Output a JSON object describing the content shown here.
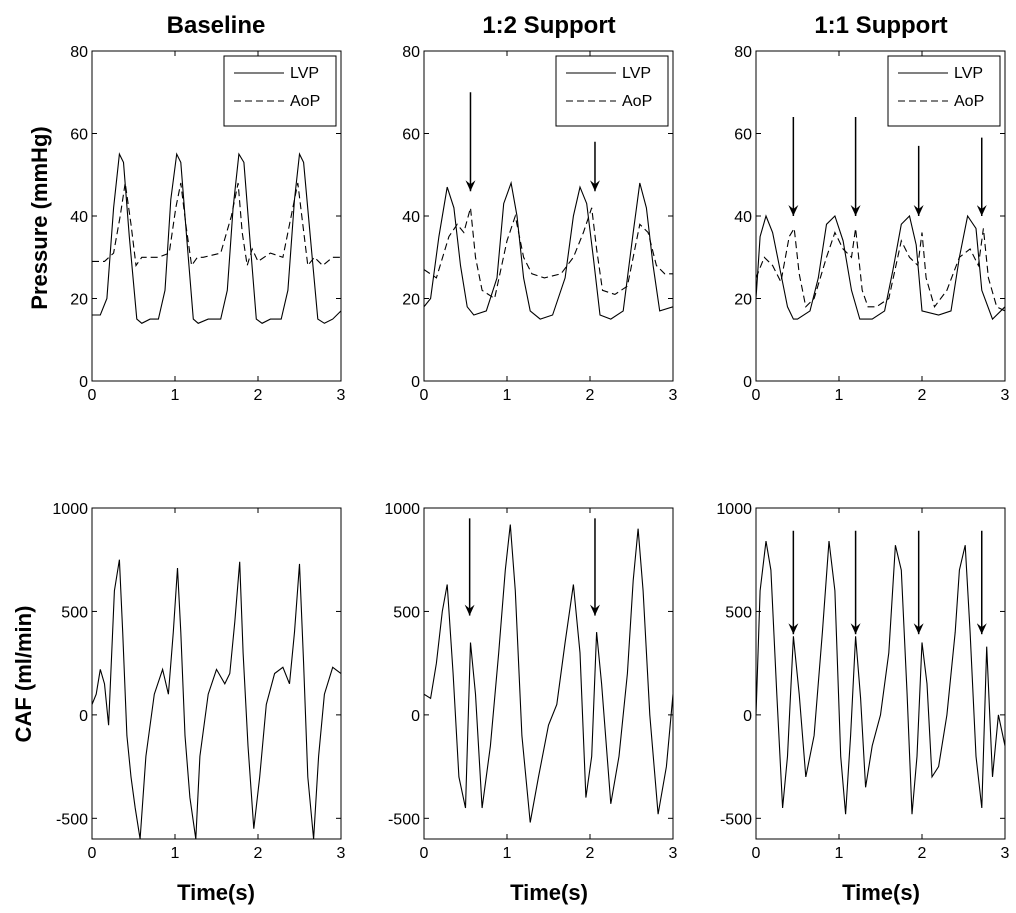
{
  "figure": {
    "column_titles": [
      "Baseline",
      "1:2 Support",
      "1:1 Support"
    ],
    "ylabel_top": "Pressure (mmHg)",
    "ylabel_bottom": "CAF (ml/min)",
    "xlabel": "Time(s)"
  },
  "chart_data": [
    {
      "type": "line",
      "panel": "pressure-baseline",
      "title": "Baseline",
      "ylabel": "Pressure (mmHg)",
      "xlabel": "",
      "xlim": [
        0,
        3
      ],
      "ylim": [
        0,
        80
      ],
      "xticks": [
        0,
        1,
        2,
        3
      ],
      "yticks": [
        0,
        20,
        40,
        60,
        80
      ],
      "legend": {
        "position": "top-right",
        "entries": [
          {
            "label": "LVP",
            "style": "solid"
          },
          {
            "label": "AoP",
            "style": "dashed"
          }
        ]
      },
      "series": [
        {
          "name": "LVP",
          "style": "solid",
          "x": [
            0,
            0.1,
            0.18,
            0.26,
            0.33,
            0.38,
            0.45,
            0.54,
            0.6,
            0.7,
            0.8,
            0.88,
            0.95,
            1.02,
            1.07,
            1.14,
            1.22,
            1.28,
            1.4,
            1.55,
            1.63,
            1.7,
            1.77,
            1.83,
            1.9,
            1.98,
            2.05,
            2.15,
            2.28,
            2.36,
            2.44,
            2.5,
            2.55,
            2.63,
            2.72,
            2.8,
            2.9,
            3.0
          ],
          "y": [
            16,
            16,
            20,
            42,
            55,
            53,
            35,
            15,
            14,
            15,
            15,
            22,
            44,
            55,
            53,
            35,
            15,
            14,
            15,
            15,
            22,
            42,
            55,
            53,
            35,
            15,
            14,
            15,
            15,
            22,
            44,
            55,
            53,
            35,
            15,
            14,
            15,
            17
          ]
        },
        {
          "name": "AoP",
          "style": "dashed",
          "x": [
            0,
            0.15,
            0.26,
            0.34,
            0.4,
            0.47,
            0.53,
            0.6,
            0.8,
            0.93,
            1.01,
            1.07,
            1.13,
            1.2,
            1.27,
            1.34,
            1.55,
            1.68,
            1.76,
            1.81,
            1.87,
            1.93,
            2.0,
            2.15,
            2.3,
            2.4,
            2.48,
            2.54,
            2.6,
            2.68,
            2.78,
            2.9,
            3.0
          ],
          "y": [
            29,
            29,
            31,
            40,
            48,
            38,
            28,
            30,
            30,
            31,
            42,
            48,
            38,
            28,
            30,
            30,
            31,
            40,
            48,
            36,
            28,
            32,
            29,
            31,
            30,
            40,
            48,
            38,
            28,
            30,
            28,
            30,
            30
          ]
        }
      ]
    },
    {
      "type": "line",
      "panel": "pressure-1to2",
      "title": "1:2 Support",
      "ylabel": "",
      "xlabel": "",
      "xlim": [
        0,
        3
      ],
      "ylim": [
        0,
        80
      ],
      "xticks": [
        0,
        1,
        2,
        3
      ],
      "yticks": [
        0,
        20,
        40,
        60,
        80
      ],
      "legend": {
        "position": "top-right",
        "entries": [
          {
            "label": "LVP",
            "style": "solid"
          },
          {
            "label": "AoP",
            "style": "dashed"
          }
        ]
      },
      "arrows": [
        {
          "x": 0.56,
          "y_from": 70,
          "y_to": 46
        },
        {
          "x": 2.06,
          "y_from": 58,
          "y_to": 46
        }
      ],
      "series": [
        {
          "name": "LVP",
          "style": "solid",
          "x": [
            0,
            0.08,
            0.18,
            0.28,
            0.36,
            0.44,
            0.52,
            0.6,
            0.75,
            0.88,
            0.96,
            1.05,
            1.12,
            1.2,
            1.28,
            1.4,
            1.55,
            1.7,
            1.8,
            1.88,
            1.96,
            2.04,
            2.12,
            2.25,
            2.4,
            2.52,
            2.6,
            2.68,
            2.76,
            2.84,
            3.0
          ],
          "y": [
            18,
            20,
            35,
            47,
            42,
            28,
            18,
            16,
            17,
            25,
            43,
            48,
            40,
            25,
            17,
            15,
            16,
            25,
            40,
            47,
            43,
            30,
            16,
            15,
            17,
            36,
            48,
            42,
            28,
            17,
            18
          ]
        },
        {
          "name": "AoP",
          "style": "dashed",
          "x": [
            0,
            0.15,
            0.3,
            0.4,
            0.48,
            0.56,
            0.62,
            0.7,
            0.85,
            1.0,
            1.1,
            1.2,
            1.3,
            1.45,
            1.65,
            1.8,
            1.92,
            2.02,
            2.08,
            2.15,
            2.3,
            2.45,
            2.6,
            2.7,
            2.8,
            2.9,
            3.0
          ],
          "y": [
            27,
            25,
            35,
            38,
            36,
            42,
            30,
            22,
            20,
            34,
            40,
            30,
            26,
            25,
            26,
            30,
            36,
            42,
            32,
            22,
            21,
            23,
            38,
            36,
            28,
            26,
            26
          ]
        }
      ]
    },
    {
      "type": "line",
      "panel": "pressure-1to1",
      "title": "1:1 Support",
      "ylabel": "",
      "xlabel": "",
      "xlim": [
        0,
        3
      ],
      "ylim": [
        0,
        80
      ],
      "xticks": [
        0,
        1,
        2,
        3
      ],
      "yticks": [
        0,
        20,
        40,
        60,
        80
      ],
      "legend": {
        "position": "top-right",
        "entries": [
          {
            "label": "LVP",
            "style": "solid"
          },
          {
            "label": "AoP",
            "style": "dashed"
          }
        ]
      },
      "arrows": [
        {
          "x": 0.45,
          "y_from": 64,
          "y_to": 40
        },
        {
          "x": 1.2,
          "y_from": 64,
          "y_to": 40
        },
        {
          "x": 1.96,
          "y_from": 57,
          "y_to": 40
        },
        {
          "x": 2.72,
          "y_from": 59,
          "y_to": 40
        }
      ],
      "series": [
        {
          "name": "LVP",
          "style": "solid",
          "x": [
            0,
            0.05,
            0.12,
            0.2,
            0.3,
            0.38,
            0.45,
            0.5,
            0.65,
            0.75,
            0.85,
            0.95,
            1.05,
            1.15,
            1.25,
            1.4,
            1.55,
            1.65,
            1.75,
            1.85,
            1.93,
            2.0,
            2.2,
            2.35,
            2.45,
            2.55,
            2.65,
            2.72,
            2.85,
            3.0
          ],
          "y": [
            20,
            35,
            40,
            36,
            26,
            18,
            15,
            15,
            17,
            25,
            38,
            40,
            34,
            22,
            15,
            15,
            17,
            27,
            38,
            40,
            33,
            17,
            16,
            17,
            30,
            40,
            37,
            22,
            15,
            18
          ]
        },
        {
          "name": "AoP",
          "style": "dashed",
          "x": [
            0,
            0.1,
            0.2,
            0.3,
            0.4,
            0.46,
            0.52,
            0.6,
            0.7,
            0.85,
            0.95,
            1.05,
            1.15,
            1.2,
            1.28,
            1.35,
            1.45,
            1.6,
            1.75,
            1.85,
            1.95,
            2.0,
            2.05,
            2.15,
            2.3,
            2.45,
            2.58,
            2.68,
            2.74,
            2.8,
            2.9,
            3.0
          ],
          "y": [
            25,
            30,
            28,
            24,
            35,
            37,
            26,
            18,
            20,
            30,
            36,
            32,
            30,
            37,
            22,
            18,
            18,
            20,
            34,
            30,
            28,
            36,
            25,
            18,
            22,
            30,
            32,
            28,
            37,
            25,
            18,
            17
          ]
        }
      ]
    },
    {
      "type": "line",
      "panel": "caf-baseline",
      "title": "",
      "ylabel": "CAF (ml/min)",
      "xlabel": "Time(s)",
      "xlim": [
        0,
        3
      ],
      "ylim": [
        -600,
        1000
      ],
      "xticks": [
        0,
        1,
        2,
        3
      ],
      "yticks": [
        -500,
        0,
        500,
        1000
      ],
      "series": [
        {
          "name": "",
          "style": "solid",
          "x": [
            0,
            0.05,
            0.1,
            0.15,
            0.2,
            0.27,
            0.33,
            0.37,
            0.42,
            0.47,
            0.52,
            0.58,
            0.65,
            0.75,
            0.85,
            0.92,
            0.98,
            1.03,
            1.07,
            1.12,
            1.18,
            1.25,
            1.3,
            1.4,
            1.5,
            1.6,
            1.66,
            1.72,
            1.78,
            1.82,
            1.88,
            1.95,
            2.02,
            2.1,
            2.2,
            2.3,
            2.38,
            2.44,
            2.5,
            2.55,
            2.6,
            2.67,
            2.73,
            2.8,
            2.9,
            3.0
          ],
          "y": [
            50,
            100,
            220,
            150,
            -50,
            600,
            750,
            400,
            -100,
            -300,
            -450,
            -600,
            -200,
            100,
            220,
            100,
            400,
            710,
            400,
            -100,
            -400,
            -600,
            -200,
            100,
            220,
            150,
            200,
            450,
            740,
            300,
            -150,
            -550,
            -300,
            50,
            200,
            230,
            150,
            400,
            730,
            250,
            -300,
            -600,
            -200,
            100,
            230,
            200
          ]
        }
      ]
    },
    {
      "type": "line",
      "panel": "caf-1to2",
      "title": "",
      "ylabel": "",
      "xlabel": "Time(s)",
      "xlim": [
        0,
        3
      ],
      "ylim": [
        -600,
        1000
      ],
      "xticks": [
        0,
        1,
        2,
        3
      ],
      "yticks": [
        -500,
        0,
        500,
        1000
      ],
      "arrows": [
        {
          "x": 0.55,
          "y_from": 950,
          "y_to": 480
        },
        {
          "x": 2.06,
          "y_from": 950,
          "y_to": 480
        }
      ],
      "series": [
        {
          "name": "",
          "style": "solid",
          "x": [
            0,
            0.08,
            0.15,
            0.22,
            0.28,
            0.35,
            0.42,
            0.5,
            0.56,
            0.62,
            0.7,
            0.8,
            0.9,
            0.98,
            1.04,
            1.1,
            1.18,
            1.28,
            1.38,
            1.5,
            1.6,
            1.7,
            1.8,
            1.88,
            1.95,
            2.02,
            2.08,
            2.14,
            2.25,
            2.35,
            2.45,
            2.52,
            2.58,
            2.64,
            2.72,
            2.82,
            2.92,
            3.0
          ],
          "y": [
            100,
            80,
            250,
            500,
            630,
            200,
            -300,
            -450,
            350,
            100,
            -450,
            -150,
            300,
            700,
            920,
            600,
            -100,
            -520,
            -300,
            -50,
            50,
            350,
            630,
            300,
            -400,
            -200,
            400,
            150,
            -430,
            -200,
            200,
            650,
            900,
            600,
            0,
            -480,
            -250,
            100
          ]
        }
      ]
    },
    {
      "type": "line",
      "panel": "caf-1to1",
      "title": "",
      "ylabel": "",
      "xlabel": "Time(s)",
      "xlim": [
        0,
        3
      ],
      "ylim": [
        -600,
        1000
      ],
      "xticks": [
        0,
        1,
        2,
        3
      ],
      "yticks": [
        -500,
        0,
        500,
        1000
      ],
      "arrows": [
        {
          "x": 0.45,
          "y_from": 890,
          "y_to": 390
        },
        {
          "x": 1.2,
          "y_from": 890,
          "y_to": 390
        },
        {
          "x": 1.96,
          "y_from": 890,
          "y_to": 390
        },
        {
          "x": 2.72,
          "y_from": 890,
          "y_to": 390
        }
      ],
      "series": [
        {
          "name": "",
          "style": "solid",
          "x": [
            0,
            0.05,
            0.12,
            0.18,
            0.25,
            0.32,
            0.38,
            0.45,
            0.52,
            0.6,
            0.7,
            0.8,
            0.88,
            0.95,
            1.02,
            1.08,
            1.14,
            1.2,
            1.26,
            1.32,
            1.4,
            1.5,
            1.6,
            1.68,
            1.75,
            1.82,
            1.88,
            1.94,
            2.0,
            2.06,
            2.12,
            2.2,
            2.3,
            2.4,
            2.45,
            2.52,
            2.58,
            2.65,
            2.72,
            2.78,
            2.85,
            2.92,
            3.0
          ],
          "y": [
            0,
            600,
            840,
            700,
            100,
            -450,
            -200,
            380,
            100,
            -300,
            -100,
            400,
            840,
            600,
            -200,
            -480,
            -100,
            380,
            80,
            -350,
            -150,
            0,
            300,
            820,
            700,
            100,
            -480,
            -200,
            350,
            150,
            -300,
            -250,
            0,
            400,
            700,
            820,
            400,
            -200,
            -450,
            330,
            -300,
            0,
            -150
          ]
        }
      ]
    }
  ]
}
